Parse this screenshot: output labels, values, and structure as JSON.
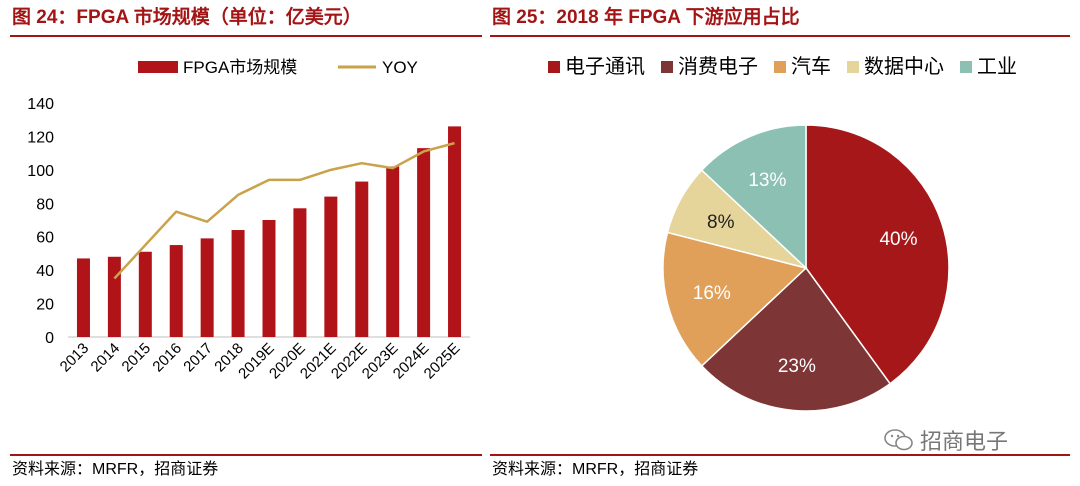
{
  "left_title": "图 24：FPGA 市场规模（单位：亿美元）",
  "right_title": "图 25：2018 年 FPGA 下游应用占比",
  "left_source": "资料来源：MRFR，招商证券",
  "right_source": "资料来源：MRFR，招商证券",
  "watermark": "招商电子",
  "colors": {
    "title": "#a31515",
    "bar": "#b01418",
    "yoy_line": "#c9a24a",
    "pie_telecom": "#a51718",
    "pie_consumer": "#7d3535",
    "pie_auto": "#e0a05a",
    "pie_datacenter": "#e6d59a",
    "pie_industry": "#8cc0b3"
  },
  "chart_data": [
    {
      "type": "bar",
      "title": "FPGA 市场规模（单位：亿美元）",
      "categories": [
        "2013",
        "2014",
        "2015",
        "2016",
        "2017",
        "2018",
        "2019E",
        "2020E",
        "2021E",
        "2022E",
        "2023E",
        "2024E",
        "2025E"
      ],
      "series": [
        {
          "name": "FPGA市场规模",
          "type": "bar",
          "values": [
            47,
            48,
            51,
            55,
            59,
            64,
            70,
            77,
            84,
            93,
            102,
            113,
            126
          ]
        },
        {
          "name": "YOY",
          "type": "line",
          "values": [
            null,
            35,
            55,
            75,
            69,
            85,
            94,
            94,
            100,
            104,
            101,
            111,
            116
          ]
        }
      ],
      "xlabel": "",
      "ylabel": "",
      "ylim": [
        0,
        140
      ],
      "yticks": [
        "0",
        "20",
        "40",
        "60",
        "80",
        "100",
        "120",
        "140"
      ],
      "legend": "top"
    },
    {
      "type": "pie",
      "title": "2018 年 FPGA 下游应用占比",
      "labels": [
        "电子通讯",
        "消费电子",
        "汽车",
        "数据中心",
        "工业"
      ],
      "values": [
        40,
        23,
        16,
        8,
        13
      ],
      "value_labels": [
        "40%",
        "23%",
        "16%",
        "8%",
        "13%"
      ],
      "legend": "top"
    }
  ]
}
